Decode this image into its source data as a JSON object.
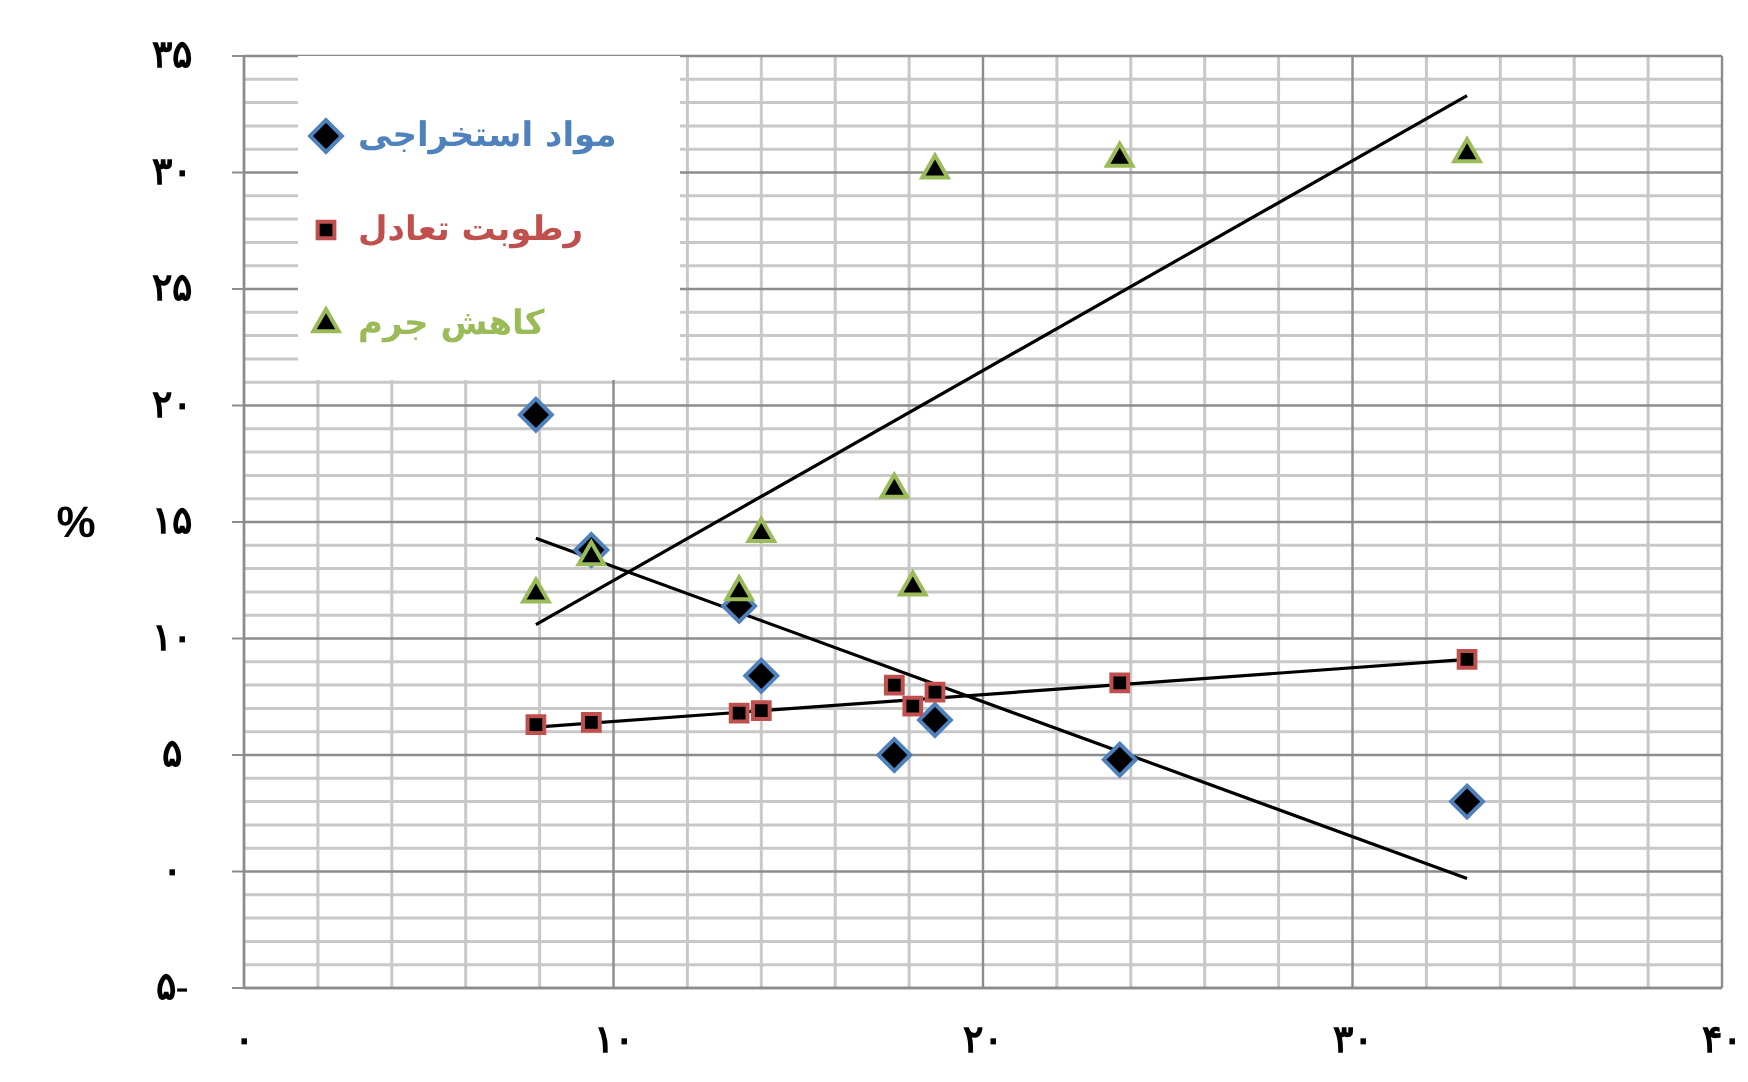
{
  "chart_data": {
    "type": "scatter",
    "ylabel": "%",
    "xlim": [
      0,
      40
    ],
    "xticks": [
      {
        "value": 0,
        "label": "۰"
      },
      {
        "value": 10,
        "label": "۱۰"
      },
      {
        "value": 20,
        "label": "۲۰"
      },
      {
        "value": 30,
        "label": "۳۰"
      },
      {
        "value": 40,
        "label": "۴۰"
      }
    ],
    "ylim": [
      -5,
      35
    ],
    "yticks": [
      {
        "value": -5,
        "label": "۵-"
      },
      {
        "value": 0,
        "label": "۰"
      },
      {
        "value": 5,
        "label": "۵"
      },
      {
        "value": 10,
        "label": "۱۰"
      },
      {
        "value": 15,
        "label": "۱۵"
      },
      {
        "value": 20,
        "label": "۲۰"
      },
      {
        "value": 25,
        "label": "۲۵"
      },
      {
        "value": 30,
        "label": "۳۰"
      },
      {
        "value": 35,
        "label": "۳۵"
      }
    ],
    "grid": true,
    "legend": "top left",
    "series": [
      {
        "name": "مواد استخراجی",
        "color": "#4f81bd",
        "marker": "diamond",
        "x": [
          7.9,
          9.4,
          13.4,
          14.0,
          17.6,
          18.7,
          23.7,
          33.1
        ],
        "values": [
          19.6,
          13.8,
          11.4,
          8.4,
          5.0,
          6.5,
          4.8,
          3.0
        ]
      },
      {
        "name": "رطوبت تعادل",
        "color": "#c0504d",
        "marker": "square",
        "x": [
          7.9,
          9.4,
          13.4,
          14.0,
          17.6,
          18.1,
          18.7,
          23.7,
          33.1
        ],
        "values": [
          6.3,
          6.4,
          6.8,
          6.9,
          8.0,
          7.1,
          7.7,
          8.1,
          9.1
        ]
      },
      {
        "name": "کاهش جرم",
        "color": "#9bbb59",
        "marker": "triangle",
        "x": [
          7.9,
          9.4,
          13.4,
          14.0,
          17.6,
          18.1,
          18.7,
          23.7,
          33.1
        ],
        "values": [
          11.9,
          13.5,
          12.0,
          14.5,
          16.4,
          12.2,
          30.1,
          30.6,
          30.8
        ]
      },
      {
        "type": "line",
        "color": "#000000",
        "x": [
          7.9,
          33.1
        ],
        "values": [
          14.3,
          -0.3
        ]
      },
      {
        "type": "line",
        "color": "#000000",
        "x": [
          7.9,
          33.1
        ],
        "values": [
          6.2,
          9.1
        ]
      },
      {
        "type": "line",
        "color": "#000000",
        "x": [
          7.9,
          33.1
        ],
        "values": [
          10.6,
          33.3
        ]
      }
    ]
  }
}
